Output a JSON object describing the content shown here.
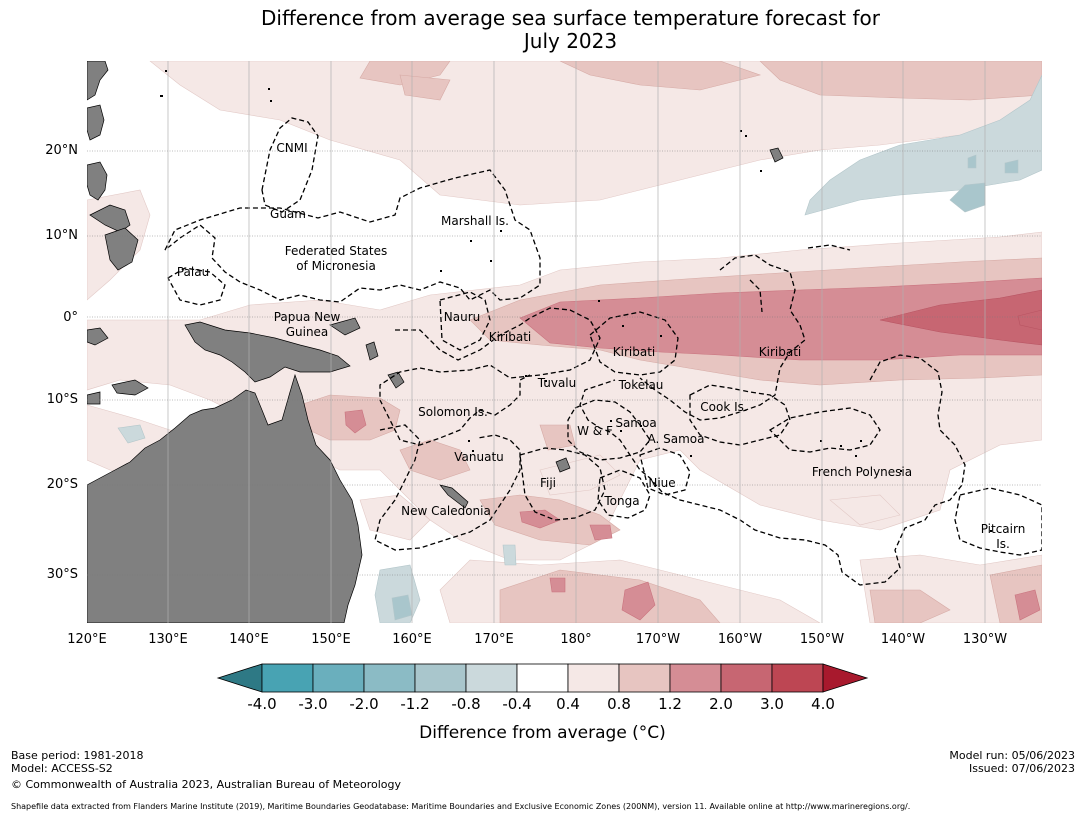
{
  "title_line1": "Difference from average sea surface temperature forecast for",
  "title_line2": "July 2023",
  "lat_labels": [
    "20°N",
    "10°N",
    "0°",
    "10°S",
    "20°S",
    "30°S"
  ],
  "lon_labels": [
    "120°E",
    "130°E",
    "140°E",
    "150°E",
    "160°E",
    "170°E",
    "180°",
    "170°W",
    "160°W",
    "150°W",
    "140°W",
    "130°W"
  ],
  "regions": {
    "cnmi": "CNMI",
    "guam": "Guam",
    "fsm_1": "Federated States",
    "fsm_2": "of Micronesia",
    "palau": "Palau",
    "marshall": "Marshall Is.",
    "png_1": "Papua New",
    "png_2": "Guinea",
    "nauru": "Nauru",
    "kiribati_w": "Kiribati",
    "kiribati_c": "Kiribati",
    "kiribati_e": "Kiribati",
    "tuvalu": "Tuvalu",
    "tokelau": "Tokelau",
    "solomon": "Solomon Is.",
    "cook": "Cook Is.",
    "samoa": "Samoa",
    "wf": "W & F",
    "asamoa": "A. Samoa",
    "vanuatu": "Vanuatu",
    "fiji": "Fiji",
    "niue": "Niue",
    "tonga": "Tonga",
    "french_polynesia": "French Polynesia",
    "new_caledonia": "New Caledonia",
    "pitcairn_1": "Pitcairn",
    "pitcairn_2": "Is."
  },
  "colorbar": {
    "ticks": [
      "-4.0",
      "-3.0",
      "-2.0",
      "-1.2",
      "-0.8",
      "-0.4",
      "0.4",
      "0.8",
      "1.2",
      "2.0",
      "3.0",
      "4.0"
    ],
    "colors": [
      "#48a3b3",
      "#6aafbd",
      "#8bbbc5",
      "#a9c6cc",
      "#cbd9dc",
      "#ffffff",
      "#f5e8e6",
      "#e7c5c1",
      "#d58d95",
      "#c76672",
      "#bd4653"
    ],
    "under_color": "#2e7985",
    "over_color": "#a8192d",
    "label": "Difference from average (°C)"
  },
  "footer": {
    "base_period": "Base period: 1981-2018",
    "model": "Model: ACCESS-S2",
    "copyright": "© Commonwealth of Australia 2023, Australian Bureau of Meteorology",
    "model_run": "Model run: 05/06/2023",
    "issued": "Issued: 07/06/2023",
    "shapefile": "Shapefile data extracted from Flanders Marine Institute (2019), Maritime Boundaries Geodatabase: Maritime Boundaries and Exclusive Economic Zones (200NM), version 11. Available online at http://www.marineregions.org/."
  },
  "palette": {
    "land": "#808080",
    "warm_1": "#f5e8e6",
    "warm_2": "#e7c5c1",
    "warm_3": "#d58d95",
    "warm_4": "#c76672",
    "cool_1": "#cbd9dc",
    "cool_2": "#a9c6cc"
  }
}
